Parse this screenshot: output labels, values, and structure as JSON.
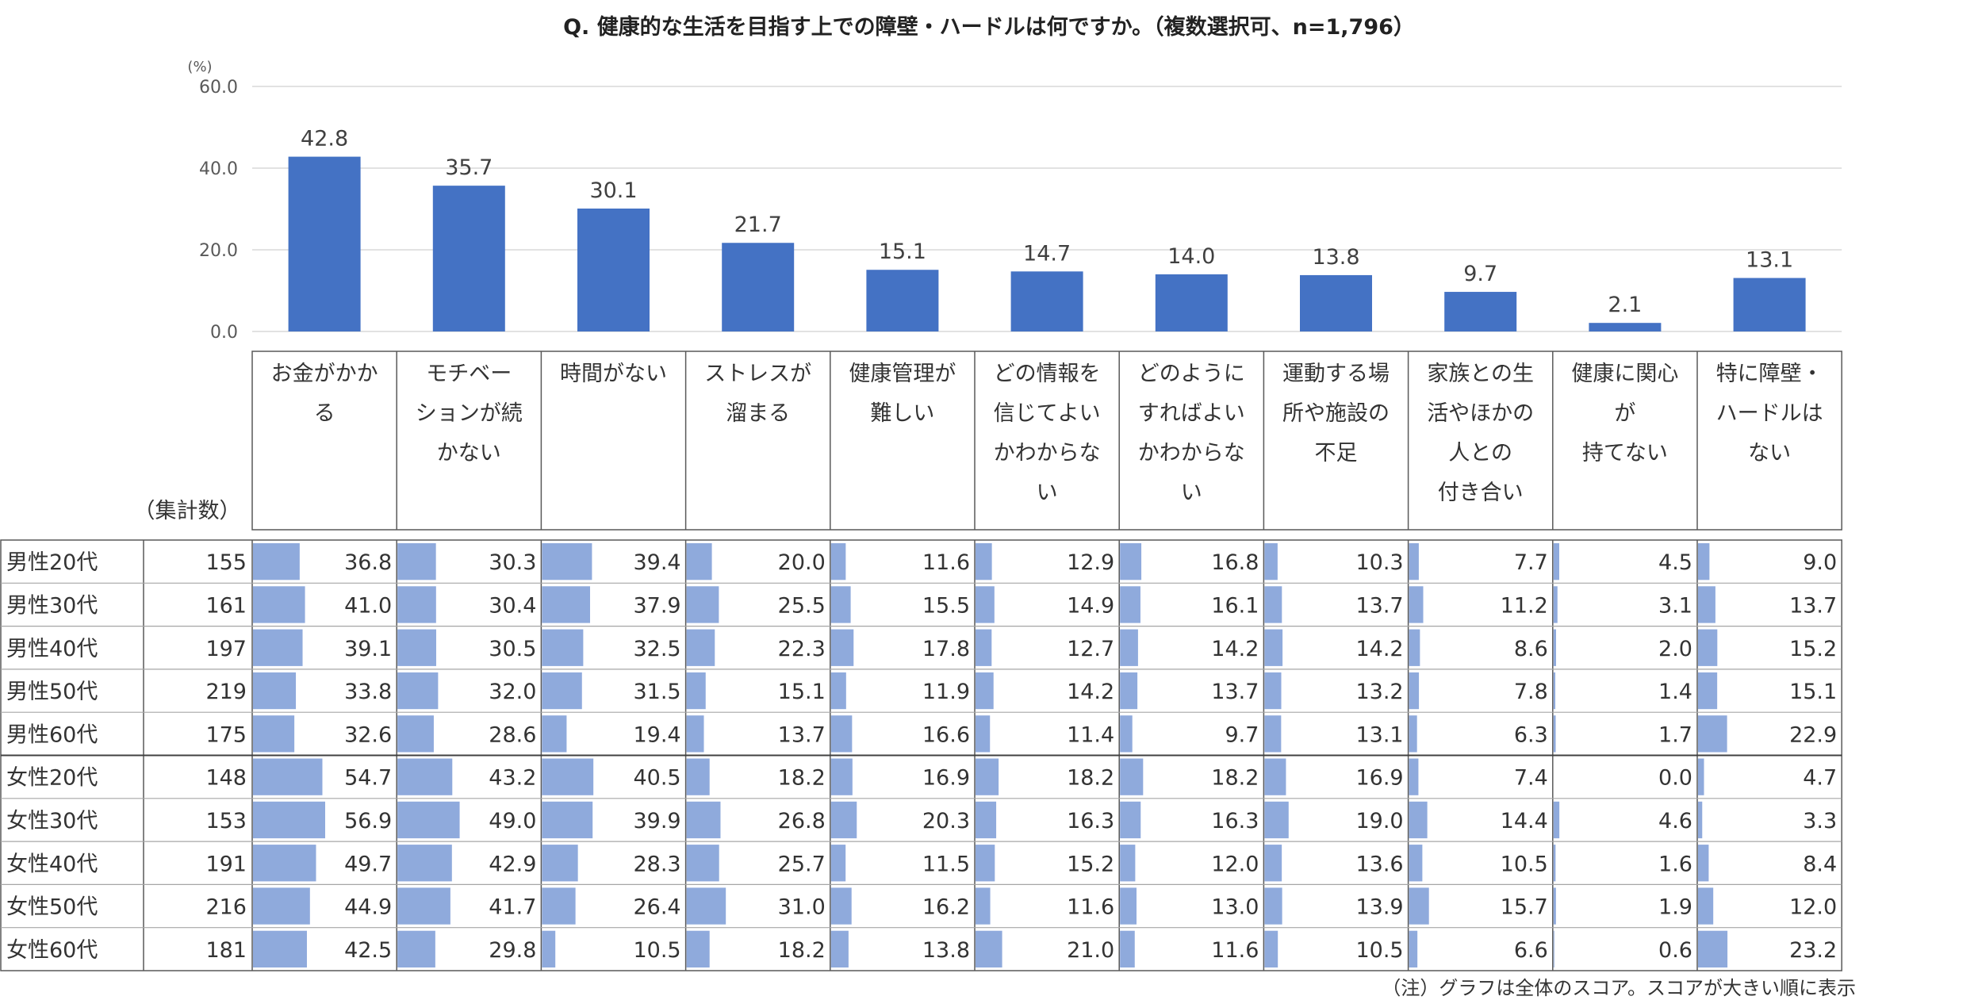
{
  "chart_data": {
    "type": "bar",
    "title": "Q. 健康的な生活を目指す上での障壁・ハードルは何ですか。（複数選択可、n=1,796）",
    "y_unit": "(%)",
    "ylim": [
      0,
      60
    ],
    "y_ticks": [
      "0.0",
      "20.0",
      "40.0",
      "60.0"
    ],
    "grid": true,
    "categories": [
      [
        "お金がかか",
        "る"
      ],
      [
        "モチベー",
        "ションが続",
        "かない"
      ],
      [
        "時間がない"
      ],
      [
        "ストレスが",
        "溜まる"
      ],
      [
        "健康管理が",
        "難しい"
      ],
      [
        "どの情報を",
        "信じてよい",
        "かわからな",
        "い"
      ],
      [
        "どのように",
        "すればよい",
        "かわからな",
        "い"
      ],
      [
        "運動する場",
        "所や施設の",
        "不足"
      ],
      [
        "家族との生",
        "活やほかの",
        "人との",
        "付き合い"
      ],
      [
        "健康に関心",
        "が",
        "持てない"
      ],
      [
        "特に障壁・",
        "ハードルは",
        "ない"
      ]
    ],
    "series": [
      {
        "values": [
          42.8,
          35.7,
          30.1,
          21.7,
          15.1,
          14.7,
          14.0,
          13.8,
          9.7,
          2.1,
          13.1
        ],
        "labels": [
          "42.8",
          "35.7",
          "30.1",
          "21.7",
          "15.1",
          "14.7",
          "14.0",
          "13.8",
          "9.7",
          "2.1",
          "13.1"
        ]
      }
    ],
    "table": {
      "count_header": "（集計数）",
      "rows": [
        {
          "label": "男性20代",
          "count": "155",
          "values": [
            "36.8",
            "30.3",
            "39.4",
            "20.0",
            "11.6",
            "12.9",
            "16.8",
            "10.3",
            "7.7",
            "4.5",
            "9.0"
          ]
        },
        {
          "label": "男性30代",
          "count": "161",
          "values": [
            "41.0",
            "30.4",
            "37.9",
            "25.5",
            "15.5",
            "14.9",
            "16.1",
            "13.7",
            "11.2",
            "3.1",
            "13.7"
          ]
        },
        {
          "label": "男性40代",
          "count": "197",
          "values": [
            "39.1",
            "30.5",
            "32.5",
            "22.3",
            "17.8",
            "12.7",
            "14.2",
            "14.2",
            "8.6",
            "2.0",
            "15.2"
          ]
        },
        {
          "label": "男性50代",
          "count": "219",
          "values": [
            "33.8",
            "32.0",
            "31.5",
            "15.1",
            "11.9",
            "14.2",
            "13.7",
            "13.2",
            "7.8",
            "1.4",
            "15.1"
          ]
        },
        {
          "label": "男性60代",
          "count": "175",
          "values": [
            "32.6",
            "28.6",
            "19.4",
            "13.7",
            "16.6",
            "11.4",
            "9.7",
            "13.1",
            "6.3",
            "1.7",
            "22.9"
          ]
        },
        {
          "label": "女性20代",
          "count": "148",
          "values": [
            "54.7",
            "43.2",
            "40.5",
            "18.2",
            "16.9",
            "18.2",
            "18.2",
            "16.9",
            "7.4",
            "0.0",
            "4.7"
          ]
        },
        {
          "label": "女性30代",
          "count": "153",
          "values": [
            "56.9",
            "49.0",
            "39.9",
            "26.8",
            "20.3",
            "16.3",
            "16.3",
            "19.0",
            "14.4",
            "4.6",
            "3.3"
          ]
        },
        {
          "label": "女性40代",
          "count": "191",
          "values": [
            "49.7",
            "42.9",
            "28.3",
            "25.7",
            "11.5",
            "15.2",
            "12.0",
            "13.6",
            "10.5",
            "1.6",
            "8.4"
          ]
        },
        {
          "label": "女性50代",
          "count": "216",
          "values": [
            "44.9",
            "41.7",
            "26.4",
            "31.0",
            "16.2",
            "11.6",
            "13.0",
            "13.9",
            "15.7",
            "1.9",
            "12.0"
          ]
        },
        {
          "label": "女性60代",
          "count": "181",
          "values": [
            "42.5",
            "29.8",
            "10.5",
            "18.2",
            "13.8",
            "21.0",
            "11.6",
            "10.5",
            "6.6",
            "0.6",
            "23.2"
          ]
        }
      ]
    }
  },
  "footnote": "（注）グラフは全体のスコア。スコアが大きい順に表示",
  "colors": {
    "bar": "#4472c4",
    "data_bar": "#8faadc",
    "grid": "#d9d9d9",
    "border": "#595959"
  }
}
